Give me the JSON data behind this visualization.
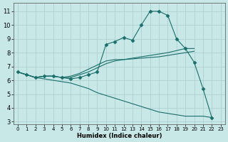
{
  "xlabel": "Humidex (Indice chaleur)",
  "xlim": [
    -0.5,
    23.5
  ],
  "ylim": [
    2.8,
    11.6
  ],
  "yticks": [
    3,
    4,
    5,
    6,
    7,
    8,
    9,
    10,
    11
  ],
  "xticks": [
    0,
    1,
    2,
    3,
    4,
    5,
    6,
    7,
    8,
    9,
    10,
    11,
    12,
    13,
    14,
    15,
    16,
    17,
    18,
    19,
    20,
    21,
    22,
    23
  ],
  "bg_color": "#c8e8e8",
  "grid_color": "#a8cccc",
  "line_color": "#1a6e6a",
  "lines": [
    {
      "x": [
        0,
        1,
        2,
        3,
        4,
        5,
        6,
        7,
        8,
        9,
        10,
        11,
        12,
        13,
        14,
        15,
        16,
        17,
        18,
        19,
        20,
        21,
        22
      ],
      "y": [
        6.6,
        6.4,
        6.2,
        6.3,
        6.3,
        6.2,
        6.1,
        6.2,
        6.4,
        6.6,
        8.6,
        8.8,
        9.1,
        8.9,
        10.0,
        11.0,
        11.0,
        10.7,
        9.0,
        8.3,
        7.3,
        5.4,
        3.3
      ],
      "marker": "D",
      "markersize": 2.5,
      "lw": 0.8
    },
    {
      "x": [
        0,
        1,
        2,
        3,
        4,
        5,
        6,
        7,
        8,
        9,
        10,
        11,
        12,
        13,
        14,
        15,
        16,
        17,
        18,
        19,
        20
      ],
      "y": [
        6.6,
        6.4,
        6.2,
        6.3,
        6.3,
        6.2,
        6.3,
        6.5,
        6.8,
        7.1,
        7.4,
        7.5,
        7.5,
        7.6,
        7.7,
        7.8,
        7.9,
        8.0,
        8.15,
        8.3,
        8.3
      ],
      "marker": null,
      "markersize": 0,
      "lw": 0.8
    },
    {
      "x": [
        0,
        1,
        2,
        3,
        4,
        5,
        6,
        7,
        8,
        9,
        10,
        11,
        12,
        13,
        14,
        15,
        16,
        17,
        18,
        19,
        20
      ],
      "y": [
        6.6,
        6.4,
        6.2,
        6.3,
        6.3,
        6.2,
        6.2,
        6.4,
        6.6,
        6.9,
        7.2,
        7.4,
        7.5,
        7.55,
        7.6,
        7.65,
        7.7,
        7.8,
        7.9,
        8.0,
        8.1
      ],
      "marker": null,
      "markersize": 0,
      "lw": 0.8
    },
    {
      "x": [
        0,
        1,
        2,
        3,
        4,
        5,
        6,
        7,
        8,
        9,
        10,
        11,
        12,
        13,
        14,
        15,
        16,
        17,
        18,
        19,
        20,
        21,
        22
      ],
      "y": [
        6.6,
        6.4,
        6.2,
        6.1,
        6.0,
        5.9,
        5.8,
        5.6,
        5.4,
        5.1,
        4.9,
        4.7,
        4.5,
        4.3,
        4.1,
        3.9,
        3.7,
        3.6,
        3.5,
        3.4,
        3.4,
        3.4,
        3.3
      ],
      "marker": null,
      "markersize": 0,
      "lw": 0.8
    }
  ]
}
